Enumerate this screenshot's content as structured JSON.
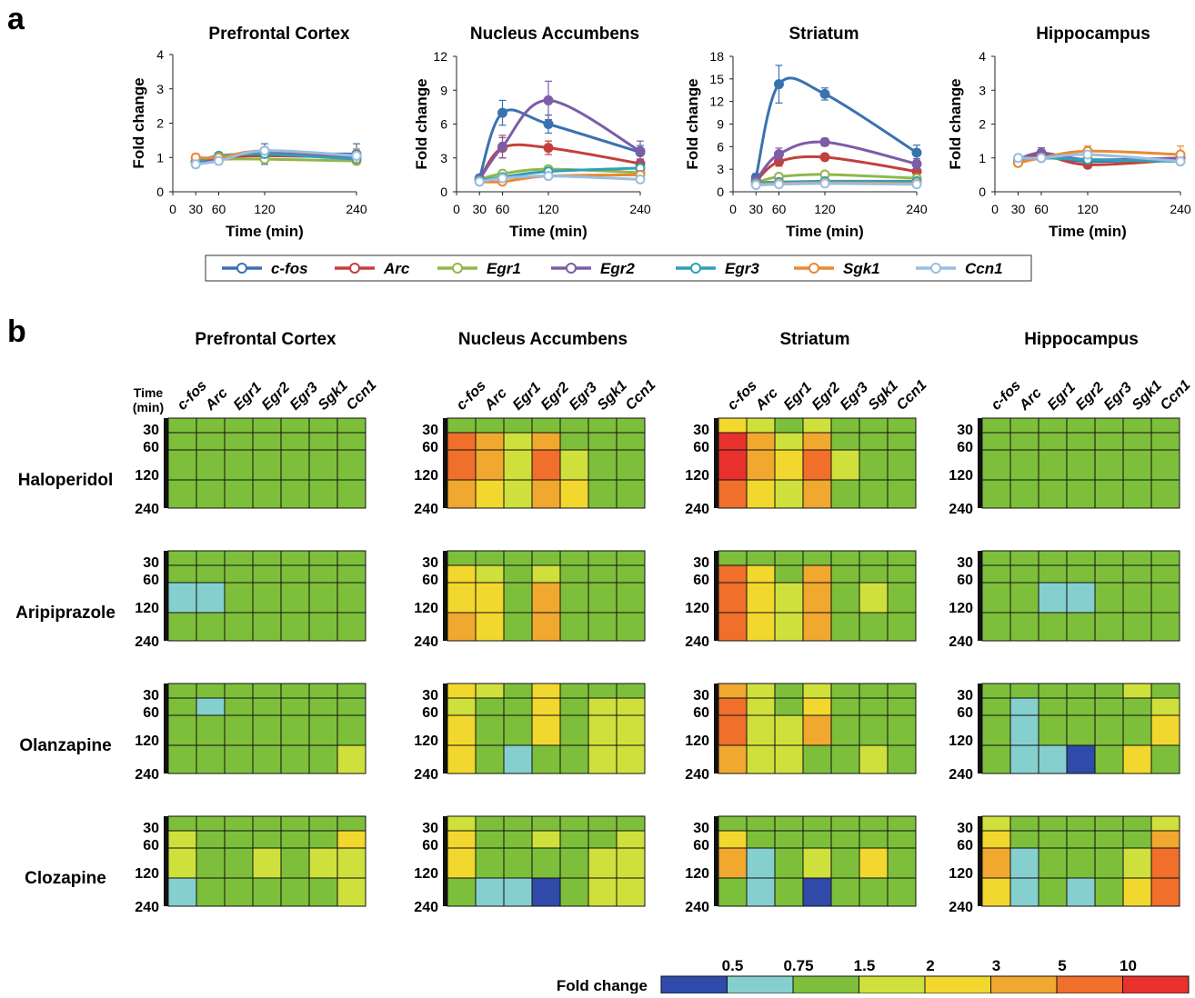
{
  "panel_labels": {
    "a": "a",
    "b": "b"
  },
  "line_panels": {
    "xlabel": "Time (min)",
    "ylabel": "Fold change",
    "x_ticks": [
      0,
      30,
      60,
      120,
      240
    ],
    "times": [
      30,
      60,
      120,
      240
    ],
    "genes": [
      {
        "name": "c-fos",
        "color": "#3a72b0"
      },
      {
        "name": "Arc",
        "color": "#c2403c"
      },
      {
        "name": "Egr1",
        "color": "#93b64a"
      },
      {
        "name": "Egr2",
        "color": "#7c5da6"
      },
      {
        "name": "Egr3",
        "color": "#2fa0b8"
      },
      {
        "name": "Sgk1",
        "color": "#e88a35"
      },
      {
        "name": "Ccn1",
        "color": "#9bbde1"
      }
    ]
  },
  "heatmap": {
    "titles": [
      "Prefrontal Cortex",
      "Nucleus Accumbens",
      "Striatum",
      "Hippocampus"
    ],
    "genes": [
      "c-fos",
      "Arc",
      "Egr1",
      "Egr2",
      "Egr3",
      "Sgk1",
      "Ccn1"
    ],
    "time_header": "Time (min)",
    "time_labels": [
      "30",
      "60",
      "120",
      "240"
    ],
    "drugs": [
      "Haloperidol",
      "Aripiprazole",
      "Olanzapine",
      "Clozapine"
    ]
  },
  "colorbar": {
    "label": "Fold change",
    "ticks": [
      "0.5",
      "0.75",
      "1.5",
      "2",
      "3",
      "5",
      "10"
    ],
    "colors": [
      "#2f4aa8",
      "#85d0cf",
      "#7dbf3b",
      "#cfe03c",
      "#f2d82e",
      "#f0a82f",
      "#ef6f2b",
      "#e8312d"
    ]
  },
  "chart_data": [
    {
      "type": "line",
      "title": "Prefrontal Cortex",
      "xlabel": "Time (min)",
      "ylabel": "Fold change",
      "x": [
        30,
        60,
        120,
        240
      ],
      "xlim": [
        0,
        240
      ],
      "ylim": [
        0,
        4
      ],
      "y_ticks": [
        0,
        1,
        2,
        3,
        4
      ],
      "series": [
        {
          "name": "c-fos",
          "values": [
            0.85,
            0.95,
            1.1,
            1.1
          ],
          "err": [
            0.1,
            0.15,
            0.3,
            0.3
          ]
        },
        {
          "name": "Arc",
          "values": [
            0.9,
            1.0,
            1.05,
            1.0
          ]
        },
        {
          "name": "Egr1",
          "values": [
            0.9,
            0.95,
            0.95,
            0.9
          ]
        },
        {
          "name": "Egr2",
          "values": [
            0.85,
            0.95,
            1.15,
            1.0
          ]
        },
        {
          "name": "Egr3",
          "values": [
            0.85,
            1.05,
            1.1,
            0.95
          ],
          "err": [
            0.1,
            0.1,
            0.1,
            0.1
          ]
        },
        {
          "name": "Sgk1",
          "values": [
            1.0,
            1.0,
            1.2,
            1.05
          ],
          "err": [
            0.1,
            0.1,
            0.1,
            0.2
          ]
        },
        {
          "name": "Ccn1",
          "values": [
            0.8,
            0.9,
            1.2,
            1.05
          ],
          "err": [
            0.1,
            0.1,
            0.1,
            0.1
          ]
        }
      ]
    },
    {
      "type": "line",
      "title": "Nucleus Accumbens",
      "xlabel": "Time (min)",
      "ylabel": "Fold change",
      "x": [
        30,
        60,
        120,
        240
      ],
      "xlim": [
        0,
        240
      ],
      "ylim": [
        0,
        12
      ],
      "y_ticks": [
        0,
        3,
        6,
        9,
        12
      ],
      "series": [
        {
          "name": "c-fos",
          "values": [
            1.2,
            7.0,
            6.0,
            3.5
          ],
          "err": [
            0.3,
            1.1,
            0.8,
            0.6
          ]
        },
        {
          "name": "Arc",
          "values": [
            1.1,
            3.9,
            3.9,
            2.5
          ],
          "err": [
            0.2,
            0.9,
            0.6,
            0.4
          ]
        },
        {
          "name": "Egr1",
          "values": [
            1.1,
            1.6,
            2.0,
            1.7
          ]
        },
        {
          "name": "Egr2",
          "values": [
            1.1,
            4.0,
            8.1,
            3.6
          ],
          "err": [
            0.3,
            1.0,
            1.7,
            0.9
          ]
        },
        {
          "name": "Egr3",
          "values": [
            1.0,
            1.3,
            1.8,
            2.1
          ]
        },
        {
          "name": "Sgk1",
          "values": [
            0.9,
            0.9,
            1.4,
            1.5
          ]
        },
        {
          "name": "Ccn1",
          "values": [
            0.9,
            1.2,
            1.4,
            1.1
          ]
        }
      ]
    },
    {
      "type": "line",
      "title": "Striatum",
      "xlabel": "Time (min)",
      "ylabel": "Fold change",
      "x": [
        30,
        60,
        120,
        240
      ],
      "xlim": [
        0,
        240
      ],
      "ylim": [
        0,
        18
      ],
      "y_ticks": [
        0,
        3,
        6,
        9,
        12,
        15,
        18
      ],
      "series": [
        {
          "name": "c-fos",
          "values": [
            1.9,
            14.3,
            13.0,
            5.2
          ],
          "err": [
            0.5,
            2.5,
            0.8,
            1.0
          ]
        },
        {
          "name": "Arc",
          "values": [
            1.4,
            4.0,
            4.6,
            2.7
          ],
          "err": [
            0.3,
            0.6,
            0.4,
            0.6
          ]
        },
        {
          "name": "Egr1",
          "values": [
            1.2,
            2.0,
            2.3,
            1.8
          ]
        },
        {
          "name": "Egr2",
          "values": [
            1.5,
            5.0,
            6.6,
            3.7
          ],
          "err": [
            0.3,
            0.8,
            0.5,
            0.7
          ]
        },
        {
          "name": "Egr3",
          "values": [
            1.2,
            1.3,
            1.4,
            1.4
          ]
        },
        {
          "name": "Sgk1",
          "values": [
            1.0,
            1.1,
            1.2,
            1.1
          ]
        },
        {
          "name": "Ccn1",
          "values": [
            0.9,
            1.0,
            1.1,
            1.0
          ]
        }
      ]
    },
    {
      "type": "line",
      "title": "Hippocampus",
      "xlabel": "Time (min)",
      "ylabel": "Fold change",
      "x": [
        30,
        60,
        120,
        240
      ],
      "xlim": [
        0,
        240
      ],
      "ylim": [
        0,
        4
      ],
      "y_ticks": [
        0,
        1,
        2,
        3,
        4
      ],
      "series": [
        {
          "name": "c-fos",
          "values": [
            0.95,
            1.05,
            0.9,
            0.95
          ]
        },
        {
          "name": "Arc",
          "values": [
            0.9,
            1.1,
            0.8,
            0.95
          ],
          "err": [
            0.1,
            0.1,
            0.1,
            0.1
          ]
        },
        {
          "name": "Egr1",
          "values": [
            0.9,
            1.0,
            0.95,
            0.9
          ]
        },
        {
          "name": "Egr2",
          "values": [
            0.95,
            1.15,
            0.95,
            1.0
          ],
          "err": [
            0.1,
            0.15,
            0.1,
            0.1
          ]
        },
        {
          "name": "Egr3",
          "values": [
            0.95,
            1.0,
            0.95,
            0.9
          ]
        },
        {
          "name": "Sgk1",
          "values": [
            0.85,
            1.0,
            1.2,
            1.1
          ],
          "err": [
            0.1,
            0.1,
            0.15,
            0.25
          ]
        },
        {
          "name": "Ccn1",
          "values": [
            1.0,
            1.0,
            1.1,
            0.9
          ],
          "err": [
            0.1,
            0.1,
            0.1,
            0.1
          ]
        }
      ]
    },
    {
      "type": "heatmap",
      "rows": [
        "30",
        "60",
        "120",
        "240"
      ],
      "columns": [
        "c-fos",
        "Arc",
        "Egr1",
        "Egr2",
        "Egr3",
        "Sgk1",
        "Ccn1"
      ],
      "value_bins": "0=<0.5, 1=0.5-0.75, 2=0.75-1.5, 3=1.5-2, 4=2-3, 5=3-5, 6=5-10, 7=>10",
      "cells": {
        "Haloperidol": {
          "Prefrontal Cortex": [
            [
              2,
              2,
              2,
              2,
              2,
              2,
              2
            ],
            [
              2,
              2,
              2,
              2,
              2,
              2,
              2
            ],
            [
              2,
              2,
              2,
              2,
              2,
              2,
              2
            ],
            [
              2,
              2,
              2,
              2,
              2,
              2,
              2
            ]
          ],
          "Nucleus Accumbens": [
            [
              2,
              2,
              2,
              2,
              2,
              2,
              2
            ],
            [
              6,
              5,
              3,
              5,
              2,
              2,
              2
            ],
            [
              6,
              5,
              3,
              6,
              3,
              2,
              2
            ],
            [
              5,
              4,
              3,
              5,
              4,
              2,
              2
            ]
          ],
          "Striatum": [
            [
              4,
              3,
              2,
              3,
              2,
              2,
              2
            ],
            [
              7,
              5,
              3,
              5,
              2,
              2,
              2
            ],
            [
              7,
              5,
              4,
              6,
              3,
              2,
              2
            ],
            [
              6,
              4,
              3,
              5,
              2,
              2,
              2
            ]
          ],
          "Hippocampus": [
            [
              2,
              2,
              2,
              2,
              2,
              2,
              2
            ],
            [
              2,
              2,
              2,
              2,
              2,
              2,
              2
            ],
            [
              2,
              2,
              2,
              2,
              2,
              2,
              2
            ],
            [
              2,
              2,
              2,
              2,
              2,
              2,
              2
            ]
          ]
        },
        "Aripiprazole": {
          "Prefrontal Cortex": [
            [
              2,
              2,
              2,
              2,
              2,
              2,
              2
            ],
            [
              2,
              2,
              2,
              2,
              2,
              2,
              2
            ],
            [
              1,
              1,
              2,
              2,
              2,
              2,
              2
            ],
            [
              2,
              2,
              2,
              2,
              2,
              2,
              2
            ]
          ],
          "Nucleus Accumbens": [
            [
              2,
              2,
              2,
              2,
              2,
              2,
              2
            ],
            [
              4,
              3,
              2,
              3,
              2,
              2,
              2
            ],
            [
              4,
              4,
              2,
              5,
              2,
              2,
              2
            ],
            [
              5,
              4,
              2,
              5,
              2,
              2,
              2
            ]
          ],
          "Striatum": [
            [
              2,
              2,
              2,
              2,
              2,
              2,
              2
            ],
            [
              6,
              4,
              2,
              5,
              2,
              2,
              2
            ],
            [
              6,
              4,
              3,
              5,
              2,
              3,
              2
            ],
            [
              6,
              4,
              3,
              5,
              2,
              2,
              2
            ]
          ],
          "Hippocampus": [
            [
              2,
              2,
              2,
              2,
              2,
              2,
              2
            ],
            [
              2,
              2,
              2,
              2,
              2,
              2,
              2
            ],
            [
              2,
              2,
              1,
              1,
              2,
              2,
              2
            ],
            [
              2,
              2,
              2,
              2,
              2,
              2,
              2
            ]
          ]
        },
        "Olanzapine": {
          "Prefrontal Cortex": [
            [
              2,
              2,
              2,
              2,
              2,
              2,
              2
            ],
            [
              2,
              1,
              2,
              2,
              2,
              2,
              2
            ],
            [
              2,
              2,
              2,
              2,
              2,
              2,
              2
            ],
            [
              2,
              2,
              2,
              2,
              2,
              2,
              3
            ]
          ],
          "Nucleus Accumbens": [
            [
              4,
              3,
              2,
              4,
              2,
              2,
              2
            ],
            [
              3,
              2,
              2,
              4,
              2,
              3,
              3
            ],
            [
              4,
              2,
              2,
              4,
              2,
              3,
              3
            ],
            [
              4,
              2,
              1,
              2,
              2,
              3,
              3
            ]
          ],
          "Striatum": [
            [
              5,
              3,
              2,
              3,
              2,
              2,
              2
            ],
            [
              6,
              3,
              2,
              4,
              2,
              2,
              2
            ],
            [
              6,
              3,
              3,
              5,
              2,
              2,
              2
            ],
            [
              5,
              3,
              3,
              2,
              2,
              3,
              2
            ]
          ],
          "Hippocampus": [
            [
              2,
              2,
              2,
              2,
              2,
              3,
              2
            ],
            [
              2,
              1,
              2,
              2,
              2,
              2,
              3
            ],
            [
              2,
              1,
              2,
              2,
              2,
              2,
              4
            ],
            [
              2,
              1,
              1,
              0,
              2,
              4,
              2
            ]
          ]
        },
        "Clozapine": {
          "Prefrontal Cortex": [
            [
              2,
              2,
              2,
              2,
              2,
              2,
              2
            ],
            [
              3,
              2,
              2,
              2,
              2,
              2,
              4
            ],
            [
              3,
              2,
              2,
              3,
              2,
              3,
              3
            ],
            [
              1,
              2,
              2,
              2,
              2,
              2,
              3
            ]
          ],
          "Nucleus Accumbens": [
            [
              3,
              2,
              2,
              2,
              2,
              2,
              2
            ],
            [
              4,
              2,
              2,
              3,
              2,
              2,
              3
            ],
            [
              4,
              2,
              2,
              2,
              2,
              3,
              3
            ],
            [
              2,
              1,
              1,
              0,
              2,
              3,
              3
            ]
          ],
          "Striatum": [
            [
              2,
              2,
              2,
              2,
              2,
              2,
              2
            ],
            [
              4,
              2,
              2,
              2,
              2,
              2,
              2
            ],
            [
              5,
              1,
              2,
              3,
              2,
              4,
              2
            ],
            [
              2,
              1,
              2,
              0,
              2,
              2,
              2
            ]
          ],
          "Hippocampus": [
            [
              3,
              2,
              2,
              2,
              2,
              2,
              3
            ],
            [
              4,
              2,
              2,
              2,
              2,
              2,
              5
            ],
            [
              5,
              1,
              2,
              2,
              2,
              3,
              6
            ],
            [
              4,
              1,
              2,
              1,
              2,
              4,
              6
            ]
          ]
        }
      }
    }
  ]
}
